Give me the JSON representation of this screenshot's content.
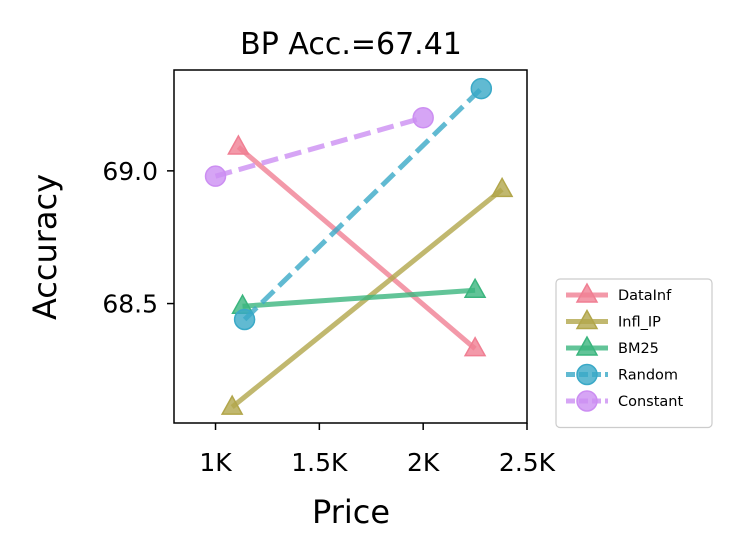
{
  "chart_data": {
    "type": "line",
    "title": "BP Acc.=67.41",
    "xlabel": "Price",
    "ylabel": "Accuracy",
    "xlim": [
      800,
      2500
    ],
    "ylim": [
      68.05,
      69.38
    ],
    "xticks": [
      {
        "value": 1000,
        "label": "1K"
      },
      {
        "value": 1500,
        "label": "1.5K"
      },
      {
        "value": 2000,
        "label": "2K"
      },
      {
        "value": 2500,
        "label": "2.5K"
      }
    ],
    "yticks": [
      {
        "value": 68.5,
        "label": "68.5"
      },
      {
        "value": 69.0,
        "label": "69.0"
      }
    ],
    "grid": false,
    "legend_position": "outside-right-bottom",
    "series": [
      {
        "name": "DataInf",
        "color": "#f07f93",
        "marker": "triangle",
        "dashed": false,
        "points": [
          {
            "x": 1110,
            "y": 69.09
          },
          {
            "x": 2250,
            "y": 68.33
          }
        ]
      },
      {
        "name": "Infl_IP",
        "color": "#b2a64b",
        "marker": "triangle",
        "dashed": false,
        "points": [
          {
            "x": 1080,
            "y": 68.11
          },
          {
            "x": 2380,
            "y": 68.93
          }
        ]
      },
      {
        "name": "BM25",
        "color": "#3bb57e",
        "marker": "triangle",
        "dashed": false,
        "points": [
          {
            "x": 1130,
            "y": 68.49
          },
          {
            "x": 2250,
            "y": 68.55
          }
        ]
      },
      {
        "name": "Random",
        "color": "#3aa9c7",
        "marker": "circle",
        "dashed": true,
        "points": [
          {
            "x": 1140,
            "y": 68.44
          },
          {
            "x": 2280,
            "y": 69.31
          }
        ]
      },
      {
        "name": "Constant",
        "color": "#cc8ef2",
        "marker": "circle",
        "dashed": true,
        "points": [
          {
            "x": 1000,
            "y": 68.98
          },
          {
            "x": 2000,
            "y": 69.2
          }
        ]
      }
    ]
  }
}
